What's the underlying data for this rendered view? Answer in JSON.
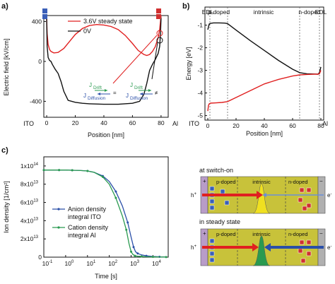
{
  "panels": {
    "a": "a)",
    "b": "b)",
    "c": "c)"
  },
  "chart_data": [
    {
      "id": "a",
      "type": "line",
      "xlabel": "Position [nm]",
      "ylabel": "Electric field [kV/cm]",
      "xticks": [
        0,
        20,
        40,
        60,
        80
      ],
      "yticks": [
        -400,
        0,
        400
      ],
      "xlim": [
        -2,
        85
      ],
      "ylim": [
        -560,
        460
      ],
      "left_label": "ITO",
      "right_label": "Al",
      "legend": [
        "3.6V steady state",
        "0V"
      ],
      "colors": [
        "#e02020",
        "#111111"
      ],
      "series": [
        {
          "name": "3.6V steady state",
          "x": [
            0,
            0.3,
            1,
            2,
            3,
            5,
            8,
            12,
            16,
            20,
            25,
            30,
            35,
            40,
            45,
            50,
            55,
            60,
            64,
            68,
            70,
            72,
            74,
            76,
            78,
            79,
            79.7,
            80
          ],
          "y": [
            440,
            280,
            170,
            120,
            100,
            85,
            90,
            130,
            200,
            270,
            330,
            360,
            370,
            365,
            350,
            320,
            260,
            180,
            110,
            70,
            60,
            70,
            100,
            150,
            240,
            320,
            420,
            470
          ]
        },
        {
          "name": "0V",
          "x": [
            0,
            0.3,
            1,
            2,
            3,
            4,
            6,
            8,
            10,
            12,
            15,
            20,
            25,
            30,
            40,
            50,
            60,
            65,
            68,
            70,
            72,
            74,
            76,
            78,
            79,
            79.6,
            80
          ],
          "y": [
            430,
            150,
            40,
            10,
            0,
            -30,
            -80,
            -120,
            -200,
            -300,
            -390,
            -410,
            -420,
            -425,
            -430,
            -430,
            -420,
            -400,
            -330,
            -220,
            -90,
            -30,
            20,
            80,
            150,
            280,
            440
          ]
        }
      ],
      "annotations": {
        "j_drift_1": "J",
        "drift_1": "Drift",
        "j_diff_1": "J",
        "diff_1": "Diffusion",
        "eq": "=",
        "j_drift_2": "J",
        "drift_2": "Drift",
        "j_diff_2": "J",
        "diff_2": "Diffusion",
        "neq": "≠"
      }
    },
    {
      "id": "b",
      "type": "line",
      "xlabel": "Position [nm]",
      "ylabel": "Energy [eV]",
      "xticks": [
        0,
        20,
        40,
        60,
        80
      ],
      "yticks": [
        -1,
        -2,
        -3,
        -4,
        -5
      ],
      "xlim": [
        -2,
        82
      ],
      "ylim": [
        -5.2,
        -0.2
      ],
      "left_label": "ITO",
      "right_label": "Al",
      "regions": [
        "EDL",
        "p-doped",
        "intrinsic",
        "n-doped",
        "EDL"
      ],
      "region_bounds": [
        1.5,
        14,
        65,
        79
      ],
      "series": [
        {
          "name": "",
          "x": [
            0,
            1,
            2,
            4,
            8,
            12,
            14,
            20,
            30,
            40,
            50,
            60,
            65,
            70,
            75,
            78,
            79,
            80
          ],
          "y": [
            -1.2,
            -0.95,
            -0.92,
            -0.9,
            -0.9,
            -0.91,
            -0.93,
            -1.22,
            -1.68,
            -2.12,
            -2.56,
            -2.95,
            -3.1,
            -3.15,
            -3.16,
            -3.17,
            -3.1,
            -2.85
          ]
        },
        {
          "name": "",
          "x": [
            0,
            0.5,
            1,
            2,
            5,
            10,
            14,
            20,
            30,
            40,
            50,
            60,
            65,
            70,
            75,
            78,
            79,
            80
          ],
          "y": [
            -4.8,
            -4.55,
            -4.48,
            -4.45,
            -4.44,
            -4.42,
            -4.38,
            -4.2,
            -3.9,
            -3.6,
            -3.4,
            -3.25,
            -3.2,
            -3.18,
            -3.17,
            -3.17,
            -3.15,
            -3.0
          ]
        }
      ]
    },
    {
      "id": "c",
      "type": "line",
      "xscale": "log",
      "xlabel": "Time [s]",
      "ylabel": "Ion density [1/cm²]",
      "xticks": [
        "10-1",
        "100",
        "101",
        "102",
        "103",
        "104"
      ],
      "yticks": [
        "0",
        "2x1013",
        "4x1013",
        "6x1013",
        "8x1013",
        "1x1014"
      ],
      "xlim": [
        0.1,
        50000
      ],
      "ylim": [
        0,
        110000000000000.0
      ],
      "series": [
        {
          "name": "Anion density integral ITO",
          "color": "#2a4fa8",
          "x": [
            0.1,
            0.2,
            0.5,
            1,
            2,
            5,
            10,
            20,
            50,
            100,
            200,
            400,
            700,
            1000,
            1300,
            1600,
            2000,
            3000,
            5000,
            10000,
            20000,
            40000
          ],
          "y": [
            95500000000000.0,
            95500000000000.0,
            95500000000000.0,
            95500000000000.0,
            95300000000000.0,
            95000000000000.0,
            94500000000000.0,
            93000000000000.0,
            89000000000000.0,
            83000000000000.0,
            72000000000000.0,
            56000000000000.0,
            38000000000000.0,
            22000000000000.0,
            11000000000000.0,
            6000000000000.0,
            4000000000000.0,
            2500000000000.0,
            1500000000000.0,
            800000000000.0,
            400000000000.0,
            200000000000.0
          ]
        },
        {
          "name": "Cation density integral Al",
          "color": "#2a9a50",
          "x": [
            0.1,
            0.2,
            0.5,
            1,
            2,
            5,
            10,
            20,
            50,
            100,
            200,
            400,
            600,
            800,
            1000,
            1200,
            1500,
            2000,
            3000,
            5000,
            10000,
            20000,
            40000
          ],
          "y": [
            95500000000000.0,
            95500000000000.0,
            95500000000000.0,
            95500000000000.0,
            95300000000000.0,
            95000000000000.0,
            94500000000000.0,
            93000000000000.0,
            88000000000000.0,
            80000000000000.0,
            65000000000000.0,
            45000000000000.0,
            30000000000000.0,
            15000000000000.0,
            6000000000000.0,
            3000000000000.0,
            1500000000000.0,
            1000000000000.0,
            800000000000.0,
            500000000000.0,
            300000000000.0,
            200000000000.0,
            100000000000.0
          ]
        }
      ]
    }
  ],
  "diagram": {
    "top_title": "at switch-on",
    "bottom_title": "in steady state",
    "p_label": "p-doped",
    "i_label": "intrinsic",
    "n_label": "n-doped",
    "hole": "h+",
    "electron": "e-",
    "plus": "+",
    "minus": "−"
  }
}
